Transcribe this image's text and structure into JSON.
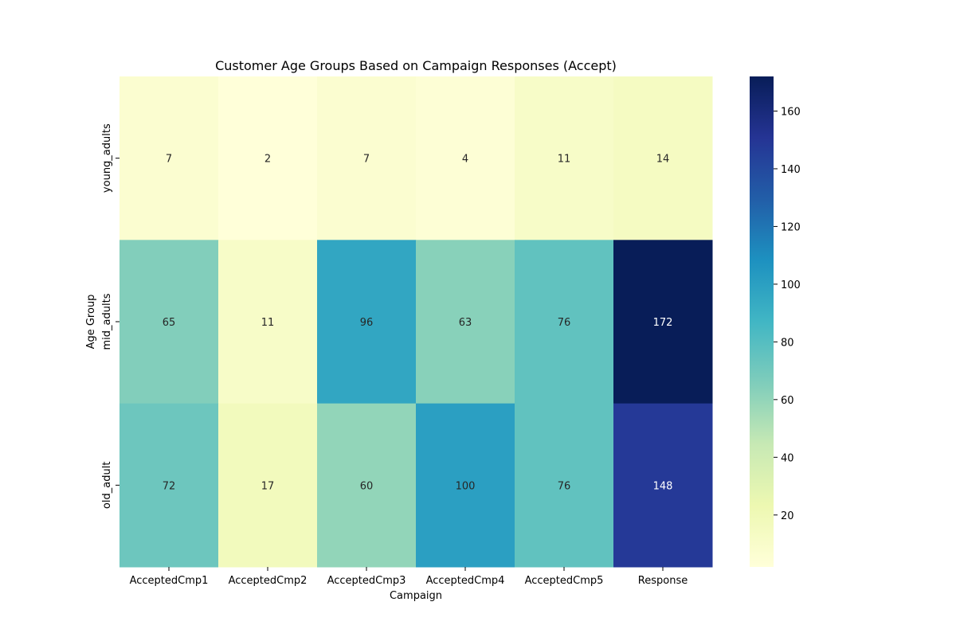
{
  "chart_data": {
    "type": "heatmap",
    "title": "Customer Age Groups Based on Campaign Responses (Accept)",
    "xlabel": "Campaign",
    "ylabel": "Age Group",
    "x_categories": [
      "AcceptedCmp1",
      "AcceptedCmp2",
      "AcceptedCmp3",
      "AcceptedCmp4",
      "AcceptedCmp5",
      "Response"
    ],
    "y_categories": [
      "young_adults",
      "mid_adults",
      "old_adult"
    ],
    "values": [
      [
        7,
        2,
        7,
        4,
        11,
        14
      ],
      [
        65,
        11,
        96,
        63,
        76,
        172
      ],
      [
        72,
        17,
        60,
        100,
        76,
        148
      ]
    ],
    "colormap": "YlGnBu",
    "value_range": [
      2,
      172
    ],
    "colorbar_ticks": [
      "20",
      "40",
      "60",
      "80",
      "100",
      "120",
      "140",
      "160"
    ],
    "legend": "colorbar-right",
    "grid": false
  }
}
